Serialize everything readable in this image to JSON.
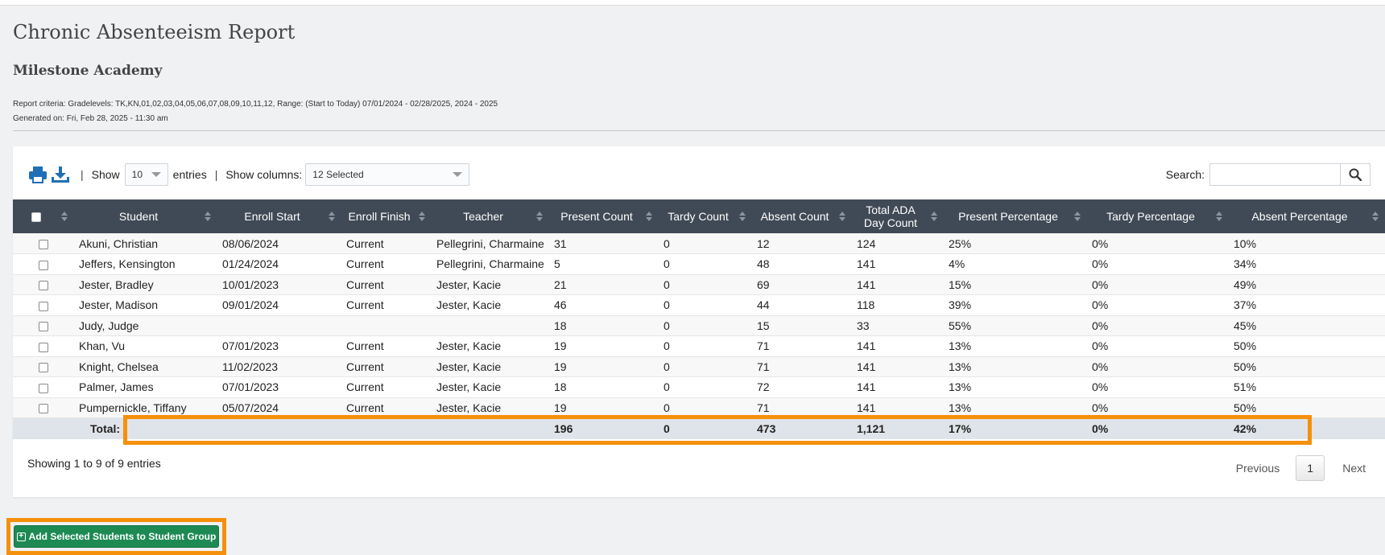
{
  "report": {
    "title": "Chronic Absenteeism Report",
    "school": "Milestone Academy",
    "criteria": "Report criteria: Gradelevels: TK,KN,01,02,03,04,05,06,07,08,09,10,11,12, Range: (Start to Today) 07/01/2024 - 02/28/2025, 2024 - 2025",
    "generated": "Generated on: Fri, Feb 28, 2025 - 11:30 am"
  },
  "toolbar": {
    "print_icon": "print-icon",
    "download_icon": "download-icon",
    "sep": "|",
    "show_label": "Show",
    "entries_value": "10",
    "entries_label": "entries",
    "show_columns_label": "Show columns:",
    "columns_value": "12 Selected",
    "search_label": "Search:",
    "search_value": "",
    "search_icon": "search-icon"
  },
  "table": {
    "headers": [
      "Student",
      "Enroll Start",
      "Enroll Finish",
      "Teacher",
      "Present Count",
      "Tardy Count",
      "Absent Count",
      "Total ADA Day Count",
      "Present Percentage",
      "Tardy Percentage",
      "Absent Percentage"
    ],
    "rows": [
      {
        "student": "Akuni, Christian",
        "enroll_start": "08/06/2024",
        "enroll_finish": "Current",
        "teacher": "Pellegrini, Charmaine",
        "present": "31",
        "tardy": "0",
        "absent": "12",
        "ada": "124",
        "present_pct": "25%",
        "tardy_pct": "0%",
        "absent_pct": "10%"
      },
      {
        "student": "Jeffers, Kensington",
        "enroll_start": "01/24/2024",
        "enroll_finish": "Current",
        "teacher": "Pellegrini, Charmaine",
        "present": "5",
        "tardy": "0",
        "absent": "48",
        "ada": "141",
        "present_pct": "4%",
        "tardy_pct": "0%",
        "absent_pct": "34%"
      },
      {
        "student": "Jester, Bradley",
        "enroll_start": "10/01/2023",
        "enroll_finish": "Current",
        "teacher": "Jester, Kacie",
        "present": "21",
        "tardy": "0",
        "absent": "69",
        "ada": "141",
        "present_pct": "15%",
        "tardy_pct": "0%",
        "absent_pct": "49%"
      },
      {
        "student": "Jester, Madison",
        "enroll_start": "09/01/2024",
        "enroll_finish": "Current",
        "teacher": "Jester, Kacie",
        "present": "46",
        "tardy": "0",
        "absent": "44",
        "ada": "118",
        "present_pct": "39%",
        "tardy_pct": "0%",
        "absent_pct": "37%"
      },
      {
        "student": "Judy, Judge",
        "enroll_start": "",
        "enroll_finish": "",
        "teacher": "",
        "present": "18",
        "tardy": "0",
        "absent": "15",
        "ada": "33",
        "present_pct": "55%",
        "tardy_pct": "0%",
        "absent_pct": "45%"
      },
      {
        "student": "Khan, Vu",
        "enroll_start": "07/01/2023",
        "enroll_finish": "Current",
        "teacher": "Jester, Kacie",
        "present": "19",
        "tardy": "0",
        "absent": "71",
        "ada": "141",
        "present_pct": "13%",
        "tardy_pct": "0%",
        "absent_pct": "50%"
      },
      {
        "student": "Knight, Chelsea",
        "enroll_start": "11/02/2023",
        "enroll_finish": "Current",
        "teacher": "Jester, Kacie",
        "present": "19",
        "tardy": "0",
        "absent": "71",
        "ada": "141",
        "present_pct": "13%",
        "tardy_pct": "0%",
        "absent_pct": "50%"
      },
      {
        "student": "Palmer, James",
        "enroll_start": "07/01/2023",
        "enroll_finish": "Current",
        "teacher": "Jester, Kacie",
        "present": "18",
        "tardy": "0",
        "absent": "72",
        "ada": "141",
        "present_pct": "13%",
        "tardy_pct": "0%",
        "absent_pct": "51%"
      },
      {
        "student": "Pumpernickle, Tiffany",
        "enroll_start": "05/07/2024",
        "enroll_finish": "Current",
        "teacher": "Jester, Kacie",
        "present": "19",
        "tardy": "0",
        "absent": "71",
        "ada": "141",
        "present_pct": "13%",
        "tardy_pct": "0%",
        "absent_pct": "50%"
      }
    ],
    "total": {
      "label": "Total:",
      "present": "196",
      "tardy": "0",
      "absent": "473",
      "ada": "1,121",
      "present_pct": "17%",
      "tardy_pct": "0%",
      "absent_pct": "42%"
    }
  },
  "footer": {
    "info": "Showing 1 to 9 of 9 entries",
    "previous": "Previous",
    "page": "1",
    "next": "Next"
  },
  "actions": {
    "add_icon": "plus-square-icon",
    "add_label": "Add Selected Students to Student Group"
  },
  "colors": {
    "header_bg": "#404a56",
    "link": "#1f6fb5",
    "highlight": "#f5900c",
    "add_button": "#1d8a54"
  }
}
